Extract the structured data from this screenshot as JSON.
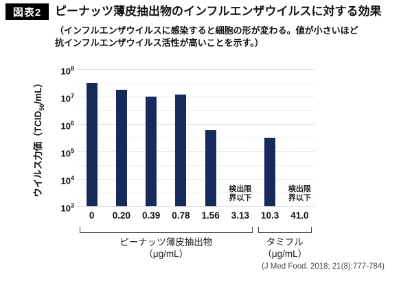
{
  "header": {
    "badge": "図表2",
    "title": "ピーナッツ薄皮抽出物のインフルエンザウイルスに対する効果",
    "subtitle_line1": "（インフルエンザウイルスに感染すると細胞の形が変わる。値が小さいほど",
    "subtitle_line2": "抗インフルエンザウイルス活性が高いことを示す。）"
  },
  "chart_data": {
    "type": "bar",
    "y_scale": "log",
    "ylim": [
      1000,
      100000000
    ],
    "y_tick_base": "10",
    "y_tick_exponents": [
      "8",
      "7",
      "6",
      "5",
      "4",
      "3"
    ],
    "ylabel": "ウイルス力価（TCID50/mL）",
    "ylabel_parts": {
      "prefix": "ウイルス力価（TCID",
      "sub": "50",
      "suffix": "/mL）"
    },
    "categories": [
      "0",
      "0.20",
      "0.39",
      "0.78",
      "1.56",
      "3.13",
      "10.3",
      "41.0"
    ],
    "values": [
      32000000,
      18000000,
      10000000,
      12000000,
      600000,
      null,
      320000,
      null
    ],
    "below_detection_lines": [
      "検出限",
      "界以下"
    ],
    "groups": [
      {
        "label": "ピーナッツ薄皮抽出物",
        "unit": "（μg/mL）",
        "span": [
          0,
          5
        ]
      },
      {
        "label": "タミフル",
        "unit": "（μg/mL）",
        "span": [
          6,
          7
        ]
      }
    ],
    "bar_color": "#182a5c",
    "grid": true,
    "legend": "none"
  },
  "footer": {
    "citation": "(J Med Food. 2018; 21(8):777-784)"
  }
}
